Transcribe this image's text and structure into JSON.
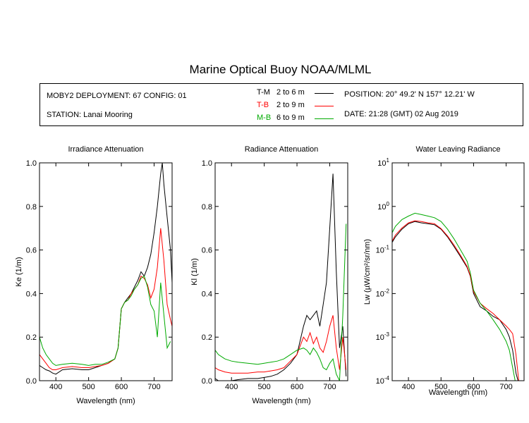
{
  "title": "Marine Optical Buoy NOAA/MLML",
  "info": {
    "deployment": "MOBY2 DEPLOYMENT: 67 CONFIG: 01",
    "station": "STATION: Lanai Mooring",
    "position": "POSITION: 20° 49.2' N   157° 12.21' W",
    "date": "DATE: 21:28 (GMT) 02 Aug 2019"
  },
  "legend": [
    {
      "code": "T-M",
      "range": "2 to 6  m",
      "color": "#000000"
    },
    {
      "code": "T-B",
      "range": "2 to 9  m",
      "color": "#ff0000"
    },
    {
      "code": "M-B",
      "range": "6 to 9  m",
      "color": "#00aa00"
    }
  ],
  "chart_data": [
    {
      "type": "line",
      "title": "Irradiance Attenuation",
      "xlabel": "Wavelength (nm)",
      "ylabel": "Ke  (1/m)",
      "xlim": [
        350,
        755
      ],
      "ylim": [
        0,
        1.0
      ],
      "yscale": "linear",
      "xticks": [
        "400",
        "500",
        "600",
        "700"
      ],
      "yticks": [
        "0.0",
        "0.2",
        "0.4",
        "0.6",
        "0.8",
        "1.0"
      ],
      "series": [
        {
          "name": "T-M",
          "color": "#000000",
          "x": [
            350,
            360,
            370,
            380,
            390,
            400,
            420,
            450,
            480,
            500,
            520,
            540,
            560,
            580,
            590,
            600,
            610,
            620,
            630,
            640,
            650,
            660,
            670,
            680,
            690,
            700,
            710,
            720,
            725,
            730,
            740,
            750,
            755
          ],
          "y": [
            0.07,
            0.06,
            0.05,
            0.045,
            0.035,
            0.03,
            0.05,
            0.055,
            0.05,
            0.05,
            0.06,
            0.07,
            0.08,
            0.1,
            0.15,
            0.33,
            0.36,
            0.38,
            0.4,
            0.43,
            0.46,
            0.5,
            0.48,
            0.52,
            0.58,
            0.68,
            0.8,
            0.95,
            1.0,
            0.9,
            0.75,
            0.6,
            0.45
          ]
        },
        {
          "name": "T-B",
          "color": "#ff0000",
          "x": [
            350,
            360,
            370,
            380,
            390,
            400,
            420,
            450,
            480,
            500,
            520,
            540,
            560,
            580,
            590,
            600,
            610,
            620,
            630,
            640,
            650,
            660,
            670,
            680,
            690,
            700,
            710,
            720,
            730,
            740,
            750,
            755
          ],
          "y": [
            0.12,
            0.1,
            0.08,
            0.06,
            0.05,
            0.05,
            0.06,
            0.065,
            0.06,
            0.06,
            0.065,
            0.07,
            0.08,
            0.1,
            0.15,
            0.33,
            0.36,
            0.37,
            0.4,
            0.42,
            0.44,
            0.48,
            0.47,
            0.44,
            0.38,
            0.42,
            0.52,
            0.7,
            0.55,
            0.35,
            0.28,
            0.25
          ]
        },
        {
          "name": "M-B",
          "color": "#00aa00",
          "x": [
            350,
            360,
            370,
            380,
            390,
            400,
            420,
            450,
            480,
            500,
            520,
            540,
            560,
            580,
            590,
            600,
            610,
            620,
            630,
            640,
            650,
            660,
            670,
            680,
            690,
            700,
            710,
            720,
            730,
            740,
            750
          ],
          "y": [
            0.2,
            0.15,
            0.12,
            0.1,
            0.08,
            0.07,
            0.075,
            0.08,
            0.075,
            0.07,
            0.075,
            0.075,
            0.085,
            0.1,
            0.15,
            0.33,
            0.36,
            0.37,
            0.39,
            0.42,
            0.44,
            0.47,
            0.48,
            0.43,
            0.35,
            0.32,
            0.2,
            0.45,
            0.3,
            0.15,
            0.18
          ]
        }
      ]
    },
    {
      "type": "line",
      "title": "Radiance Attenuation",
      "xlabel": "Wavelength (nm)",
      "ylabel": "Kl  (1/m)",
      "xlim": [
        350,
        755
      ],
      "ylim": [
        0,
        1.0
      ],
      "yscale": "linear",
      "xticks": [
        "400",
        "500",
        "600",
        "700"
      ],
      "yticks": [
        "0.0",
        "0.2",
        "0.4",
        "0.6",
        "0.8",
        "1.0"
      ],
      "series": [
        {
          "name": "T-M",
          "color": "#000000",
          "x": [
            350,
            360,
            380,
            400,
            420,
            450,
            480,
            500,
            520,
            540,
            560,
            580,
            600,
            620,
            630,
            640,
            650,
            660,
            670,
            680,
            690,
            700,
            710,
            720,
            730,
            740,
            750
          ],
          "y": [
            0.01,
            0.0,
            0.0,
            0.0,
            0.005,
            0.01,
            0.01,
            0.015,
            0.02,
            0.03,
            0.05,
            0.08,
            0.12,
            0.25,
            0.3,
            0.28,
            0.3,
            0.32,
            0.25,
            0.35,
            0.45,
            0.7,
            0.95,
            0.5,
            0.15,
            0.25,
            0.02
          ]
        },
        {
          "name": "T-B",
          "color": "#ff0000",
          "x": [
            350,
            360,
            380,
            400,
            420,
            450,
            480,
            500,
            520,
            540,
            560,
            580,
            600,
            620,
            630,
            640,
            650,
            660,
            670,
            680,
            690,
            700,
            710,
            720,
            730,
            740,
            750
          ],
          "y": [
            0.06,
            0.05,
            0.04,
            0.035,
            0.035,
            0.035,
            0.04,
            0.04,
            0.045,
            0.05,
            0.06,
            0.09,
            0.12,
            0.2,
            0.18,
            0.22,
            0.17,
            0.2,
            0.15,
            0.13,
            0.18,
            0.25,
            0.3,
            0.15,
            0.05,
            0.2,
            0.05
          ]
        },
        {
          "name": "M-B",
          "color": "#00aa00",
          "x": [
            350,
            360,
            380,
            400,
            420,
            450,
            480,
            500,
            520,
            540,
            560,
            580,
            600,
            620,
            630,
            640,
            650,
            660,
            670,
            680,
            690,
            700,
            710,
            720,
            730,
            740,
            750
          ],
          "y": [
            0.14,
            0.12,
            0.1,
            0.09,
            0.085,
            0.08,
            0.075,
            0.08,
            0.085,
            0.09,
            0.1,
            0.12,
            0.14,
            0.15,
            0.14,
            0.12,
            0.15,
            0.13,
            0.1,
            0.06,
            0.05,
            0.08,
            0.1,
            0.03,
            0.0,
            0.3,
            0.72
          ]
        }
      ]
    },
    {
      "type": "line",
      "title": "Water Leaving Radiance",
      "xlabel": "Wavelength (nm)",
      "ylabel": "Lw  (µW/cm²/sr/nm)",
      "xlim": [
        350,
        755
      ],
      "ylim": [
        0.0001,
        10
      ],
      "yscale": "log",
      "xticks": [
        "400",
        "500",
        "600",
        "700"
      ],
      "yticks": [
        "10^-4",
        "10^-3",
        "10^-2",
        "10^-1",
        "10^0",
        "10^1"
      ],
      "series": [
        {
          "name": "T-M",
          "color": "#000000",
          "x": [
            350,
            360,
            380,
            400,
            420,
            440,
            460,
            480,
            500,
            520,
            540,
            560,
            580,
            590,
            600,
            620,
            640,
            660,
            680,
            700,
            710,
            720,
            730,
            740
          ],
          "y": [
            0.15,
            0.2,
            0.3,
            0.4,
            0.45,
            0.42,
            0.4,
            0.38,
            0.3,
            0.2,
            0.12,
            0.07,
            0.04,
            0.025,
            0.01,
            0.005,
            0.004,
            0.003,
            0.0025,
            0.0015,
            0.001,
            0.0005,
            0.00015,
            8e-05
          ]
        },
        {
          "name": "T-B",
          "color": "#ff0000",
          "x": [
            350,
            360,
            380,
            400,
            420,
            440,
            460,
            480,
            500,
            520,
            540,
            560,
            580,
            590,
            600,
            620,
            640,
            660,
            680,
            700,
            710,
            720,
            730,
            740
          ],
          "y": [
            0.16,
            0.22,
            0.32,
            0.42,
            0.47,
            0.45,
            0.42,
            0.4,
            0.31,
            0.21,
            0.13,
            0.075,
            0.042,
            0.026,
            0.011,
            0.006,
            0.0045,
            0.0035,
            0.0025,
            0.0018,
            0.0015,
            0.0012,
            0.0004,
            8e-05
          ]
        },
        {
          "name": "M-B",
          "color": "#00aa00",
          "x": [
            350,
            360,
            380,
            400,
            420,
            440,
            460,
            480,
            500,
            520,
            540,
            560,
            580,
            590,
            600,
            620,
            640,
            660,
            680,
            700,
            710,
            720,
            730,
            740
          ],
          "y": [
            0.25,
            0.35,
            0.5,
            0.6,
            0.7,
            0.65,
            0.6,
            0.55,
            0.45,
            0.3,
            0.18,
            0.1,
            0.055,
            0.03,
            0.012,
            0.006,
            0.004,
            0.0025,
            0.0015,
            0.0008,
            0.0005,
            0.0002,
            8e-05,
            5e-05
          ]
        }
      ]
    }
  ]
}
